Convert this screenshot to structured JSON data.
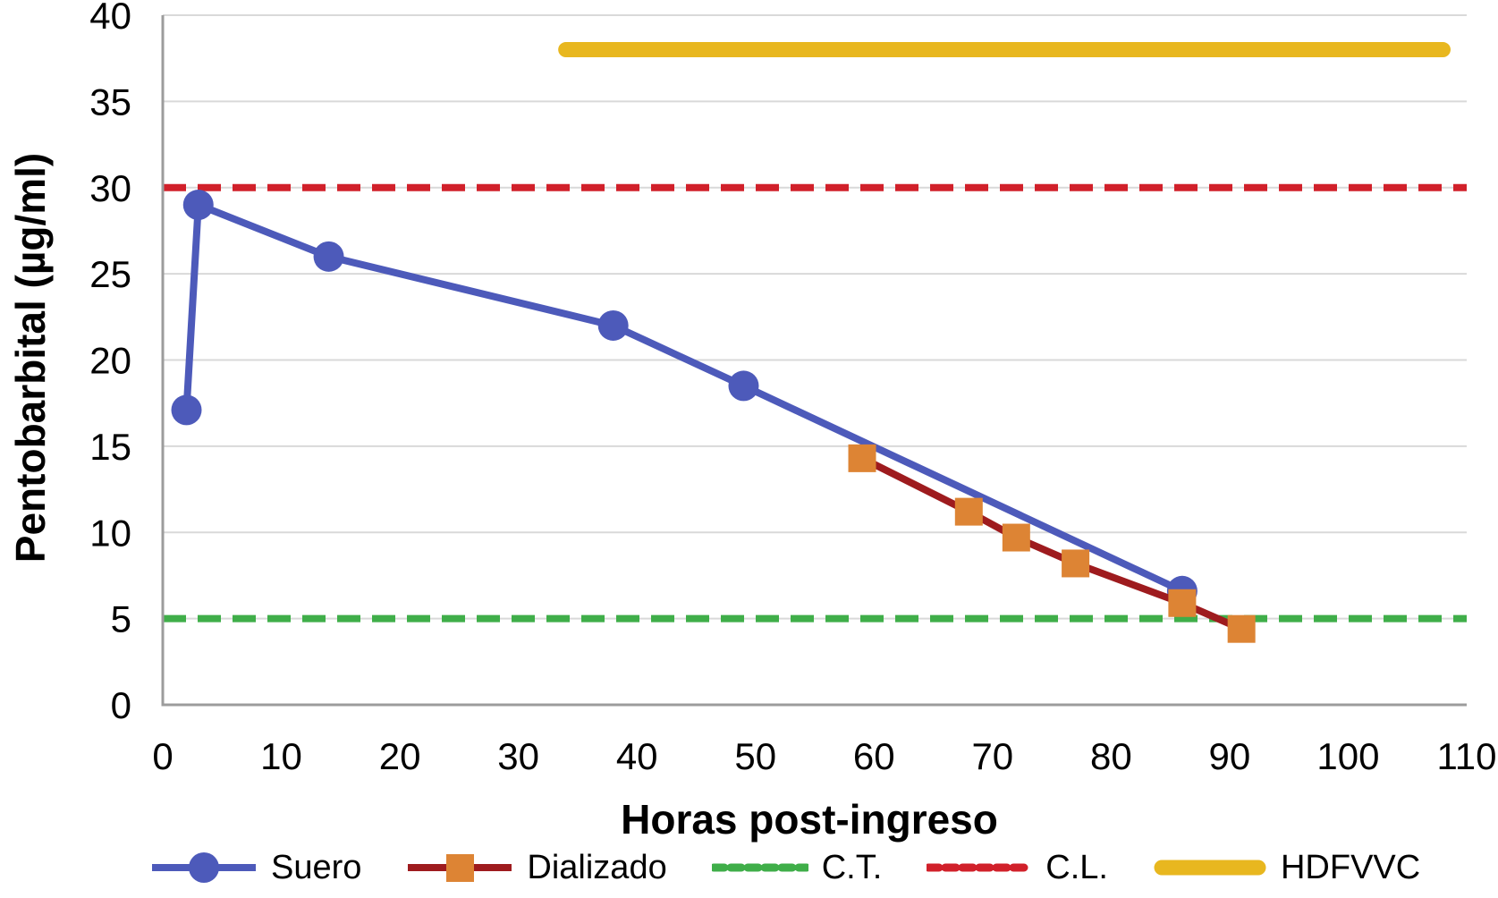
{
  "figure": {
    "y_axis_title": "Pentobarbital (µg/ml)",
    "x_axis_title": "Horas post-ingreso"
  },
  "legend": {
    "items": [
      {
        "label": "Suero",
        "marker": "blue-line-circle",
        "color": "#4d5aba"
      },
      {
        "label": "Dializado",
        "marker": "darkred-line-orange-square",
        "line_color": "#9e1b1e",
        "marker_color": "#dd8434"
      },
      {
        "label": "C.T.",
        "marker": "green-dashed-line",
        "color": "#3fae49"
      },
      {
        "label": "C.L.",
        "marker": "red-dashed-line",
        "color": "#d1202a"
      },
      {
        "label": "HDFVVC",
        "marker": "thick-yellow-line",
        "color": "#e8b71f"
      }
    ]
  },
  "chart_data": {
    "type": "line",
    "title": "",
    "xlabel": "Horas post-ingreso",
    "ylabel": "Pentobarbital (µg/ml)",
    "xlim": [
      0,
      110
    ],
    "ylim": [
      0,
      40
    ],
    "x_ticks": [
      0,
      10,
      20,
      30,
      40,
      50,
      60,
      70,
      80,
      90,
      100,
      110
    ],
    "y_ticks": [
      0,
      5,
      10,
      15,
      20,
      25,
      30,
      35,
      40
    ],
    "grid": "horizontal",
    "legend_position": "bottom",
    "series": [
      {
        "name": "Suero",
        "marker": "circle",
        "line_color": "#4d5aba",
        "marker_color": "#4d5aba",
        "points": [
          [
            2,
            17.1
          ],
          [
            3,
            29
          ],
          [
            14,
            26
          ],
          [
            38,
            22
          ],
          [
            49,
            18.5
          ],
          [
            86,
            6.6
          ]
        ]
      },
      {
        "name": "Dializado",
        "marker": "square",
        "line_color": "#9e1b1e",
        "marker_color": "#dd8434",
        "points": [
          [
            59,
            14.3
          ],
          [
            68,
            11.2
          ],
          [
            72,
            9.7
          ],
          [
            77,
            8.2
          ],
          [
            86,
            5.9
          ],
          [
            91,
            4.4
          ]
        ]
      }
    ],
    "reference_lines": [
      {
        "name": "C.T.",
        "value": 5,
        "style": "dashed",
        "color": "#3fae49"
      },
      {
        "name": "C.L.",
        "value": 30,
        "style": "dashed",
        "color": "#d1202a"
      }
    ],
    "segments": [
      {
        "name": "HDFVVC",
        "y": 38,
        "x_start": 34,
        "x_end": 108,
        "color": "#e8b71f",
        "thickness": 17
      }
    ],
    "colors": {
      "gridline": "#d9d9d9",
      "axis": "#9c9c9c",
      "tick_text": "#000000"
    }
  }
}
